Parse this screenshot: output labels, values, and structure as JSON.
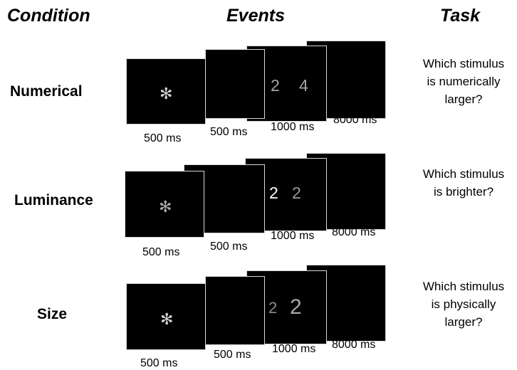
{
  "headers": {
    "condition": "Condition",
    "events": "Events",
    "task": "Task"
  },
  "fixation_symbol": "✻",
  "rows": [
    {
      "condition": "Numerical",
      "task_lines": [
        "Which stimulus",
        "is numerically",
        "larger?"
      ],
      "durations": [
        "500 ms",
        "500 ms",
        "1000 ms",
        "8000 ms"
      ],
      "stimulus": {
        "left": "2",
        "right": "4"
      }
    },
    {
      "condition": "Luminance",
      "task_lines": [
        "Which stimulus",
        "is brighter?"
      ],
      "durations": [
        "500 ms",
        "500 ms",
        "1000 ms",
        "8000 ms"
      ],
      "stimulus": {
        "left": "2",
        "right": "2"
      }
    },
    {
      "condition": "Size",
      "task_lines": [
        "Which stimulus",
        "is physically",
        "larger?"
      ],
      "durations": [
        "500 ms",
        "500 ms",
        "1000 ms",
        "8000 ms"
      ],
      "stimulus": {
        "left": "2",
        "right": "2"
      }
    }
  ]
}
